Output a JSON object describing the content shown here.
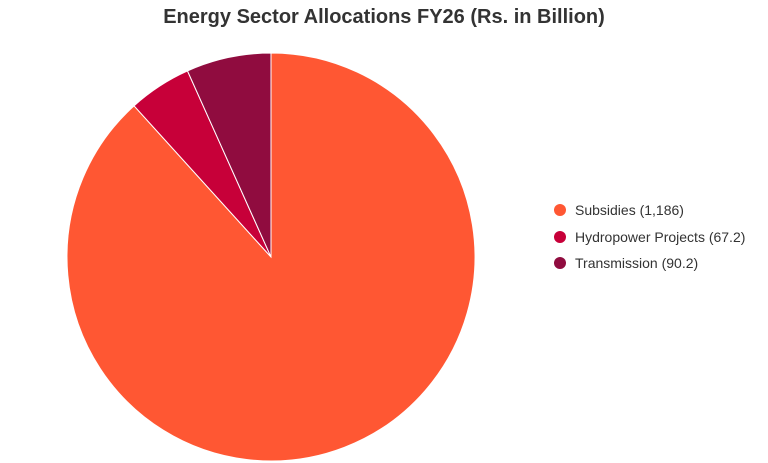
{
  "chart_data": {
    "type": "pie",
    "title": "Energy Sector Allocations FY26 (Rs. in Billion)",
    "slices": [
      {
        "label": "Subsidies (1,186)",
        "value": 1186,
        "color": "#ff5733"
      },
      {
        "label": "Hydropower Projects (67.2)",
        "value": 67.2,
        "color": "#c70039"
      },
      {
        "label": "Transmission (90.2)",
        "value": 90.2,
        "color": "#900c3f"
      }
    ],
    "legend_position": "right"
  }
}
